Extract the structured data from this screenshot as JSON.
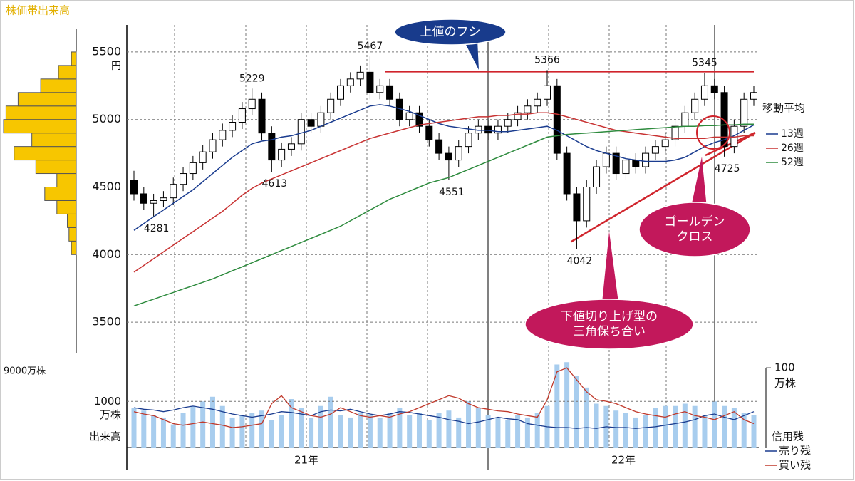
{
  "title": "株価帯出来高",
  "chart_data": [
    {
      "type": "candlestick",
      "open": [
        4550,
        4450,
        4380,
        4400,
        4420,
        4520,
        4600,
        4680,
        4760,
        4850,
        4920,
        4980,
        5080,
        5150,
        4900,
        4700,
        4780,
        4820,
        5000,
        4950,
        5050,
        5150,
        5250,
        5300,
        5350,
        5200,
        5250,
        5150,
        5000,
        5050,
        4950,
        4850,
        4750,
        4700,
        4800,
        4900,
        4950,
        4900,
        4950,
        5000,
        5050,
        5100,
        5150,
        5250,
        4750,
        4450,
        4250,
        4500,
        4650,
        4750,
        4600,
        4700,
        4650,
        4750,
        4800,
        4850,
        4950,
        5050,
        5150,
        5250,
        5200,
        4800,
        4950,
        5150
      ],
      "high": [
        4620,
        4500,
        4450,
        4470,
        4570,
        4650,
        4730,
        4810,
        4900,
        4970,
        5030,
        5130,
        5229,
        5200,
        4950,
        4830,
        4870,
        5050,
        5050,
        5100,
        5200,
        5300,
        5350,
        5400,
        5467,
        5300,
        5300,
        5200,
        5100,
        5100,
        5000,
        4900,
        4800,
        4850,
        4950,
        5000,
        5000,
        5000,
        5050,
        5100,
        5150,
        5200,
        5366,
        5300,
        4800,
        4500,
        4550,
        4700,
        4800,
        4800,
        4750,
        4750,
        4800,
        4850,
        4900,
        5000,
        5100,
        5200,
        5345,
        5300,
        5250,
        5000,
        5200,
        5250
      ],
      "low": [
        4400,
        4330,
        4281,
        4350,
        4370,
        4470,
        4550,
        4630,
        4710,
        4800,
        4870,
        4930,
        5030,
        4850,
        4613,
        4650,
        4730,
        4770,
        4900,
        4900,
        5000,
        5100,
        5200,
        5250,
        5150,
        5150,
        5100,
        4950,
        4950,
        4900,
        4800,
        4700,
        4551,
        4650,
        4750,
        4850,
        4850,
        4850,
        4900,
        4950,
        5000,
        5050,
        5100,
        4700,
        4400,
        4042,
        4200,
        4450,
        4600,
        4550,
        4550,
        4600,
        4600,
        4700,
        4750,
        4800,
        4900,
        5000,
        5100,
        5150,
        4725,
        4750,
        4900,
        5100
      ],
      "close": [
        4450,
        4380,
        4400,
        4420,
        4520,
        4600,
        4680,
        4760,
        4850,
        4920,
        4980,
        5080,
        5150,
        4900,
        4700,
        4780,
        4820,
        5000,
        4950,
        5050,
        5150,
        5250,
        5300,
        5350,
        5200,
        5250,
        5150,
        5000,
        5050,
        4950,
        4850,
        4750,
        4700,
        4800,
        4900,
        4950,
        4900,
        4950,
        5000,
        5050,
        5100,
        5150,
        5250,
        4750,
        4450,
        4250,
        4500,
        4650,
        4750,
        4600,
        4700,
        4650,
        4750,
        4800,
        4850,
        4950,
        5050,
        5150,
        5250,
        5200,
        4800,
        4950,
        5150,
        5200
      ],
      "up_color": "#ffffff",
      "down_color": "#000000",
      "ylim": [
        3300,
        5700
      ],
      "yticks": [
        3500,
        4000,
        4500,
        5000,
        5500
      ],
      "y_unit": "円",
      "grid": true,
      "x_period_labels": [
        "21年",
        "22年"
      ],
      "legend_title": "移動平均",
      "series": [
        {
          "name": "13週",
          "color": "#1a3c8f",
          "values": [
            4180,
            4230,
            4280,
            4330,
            4380,
            4430,
            4480,
            4540,
            4600,
            4660,
            4720,
            4770,
            4820,
            4840,
            4850,
            4870,
            4880,
            4900,
            4920,
            4950,
            4980,
            5010,
            5040,
            5070,
            5100,
            5110,
            5100,
            5080,
            5060,
            5030,
            5000,
            4970,
            4950,
            4940,
            4930,
            4920,
            4920,
            4910,
            4910,
            4920,
            4930,
            4940,
            4950,
            4920,
            4880,
            4840,
            4800,
            4770,
            4750,
            4730,
            4710,
            4700,
            4690,
            4690,
            4690,
            4700,
            4720,
            4760,
            4800,
            4830,
            4850,
            4880,
            4920,
            4960
          ]
        },
        {
          "name": "26週",
          "color": "#c83232",
          "values": [
            3870,
            3920,
            3970,
            4020,
            4070,
            4120,
            4170,
            4220,
            4270,
            4320,
            4380,
            4440,
            4490,
            4530,
            4560,
            4590,
            4620,
            4650,
            4680,
            4710,
            4740,
            4770,
            4800,
            4830,
            4860,
            4880,
            4900,
            4920,
            4940,
            4960,
            4970,
            4980,
            4990,
            5000,
            5010,
            5020,
            5020,
            5030,
            5030,
            5040,
            5040,
            5050,
            5050,
            5040,
            5020,
            5000,
            4980,
            4960,
            4940,
            4920,
            4910,
            4900,
            4890,
            4880,
            4870,
            4860,
            4860,
            4860,
            4860,
            4870,
            4870,
            4870,
            4880,
            4880
          ]
        },
        {
          "name": "52週",
          "color": "#2e8b3e",
          "values": [
            3620,
            3645,
            3670,
            3695,
            3720,
            3745,
            3770,
            3795,
            3820,
            3850,
            3880,
            3910,
            3940,
            3970,
            4000,
            4030,
            4060,
            4090,
            4120,
            4150,
            4180,
            4210,
            4250,
            4290,
            4330,
            4370,
            4410,
            4440,
            4470,
            4500,
            4530,
            4550,
            4570,
            4600,
            4630,
            4660,
            4690,
            4720,
            4750,
            4780,
            4810,
            4840,
            4870,
            4880,
            4890,
            4895,
            4900,
            4905,
            4910,
            4915,
            4920,
            4925,
            4930,
            4935,
            4940,
            4945,
            4950,
            4950,
            4955,
            4955,
            4960,
            4960,
            4965,
            4965
          ]
        }
      ],
      "annotations": [
        [
          "上値のフシ"
        ],
        [
          "ゴールデン",
          "クロス"
        ],
        [
          "下値切り上げ型の",
          "三角保ち合い"
        ]
      ]
    },
    {
      "type": "bar",
      "values": [
        850,
        800,
        700,
        650,
        500,
        750,
        900,
        1000,
        1100,
        900,
        650,
        700,
        750,
        800,
        600,
        700,
        1050,
        850,
        650,
        900,
        1100,
        700,
        650,
        750,
        700,
        650,
        750,
        850,
        700,
        750,
        600,
        750,
        800,
        650,
        1000,
        850,
        700,
        650,
        600,
        700,
        650,
        750,
        900,
        1800,
        1850,
        1550,
        1300,
        950,
        900,
        800,
        750,
        650,
        700,
        850,
        900,
        900,
        950,
        900,
        700,
        1000,
        900,
        850,
        750,
        700
      ],
      "color": "#a8cdee",
      "ylim": [
        0,
        1900
      ],
      "yticks": [
        1000
      ],
      "y_unit": "万株",
      "ylabel": "出来高",
      "y2lim": [
        0,
        110
      ],
      "y2ticks": [
        100
      ],
      "y2_unit": "万株",
      "y2label": "信用残",
      "series": [
        {
          "name": "売り残",
          "color": "#1a3c8f",
          "axis": "y2",
          "values": [
            50,
            48,
            47,
            45,
            47,
            50,
            52,
            50,
            48,
            45,
            42,
            40,
            38,
            40,
            42,
            45,
            44,
            42,
            40,
            45,
            47,
            46,
            48,
            45,
            42,
            40,
            42,
            45,
            44,
            42,
            40,
            38,
            35,
            33,
            30,
            32,
            35,
            38,
            36,
            35,
            30,
            28,
            26,
            25,
            25,
            24,
            25,
            24,
            26,
            25,
            25,
            24,
            25,
            26,
            28,
            30,
            32,
            35,
            40,
            42,
            38,
            35,
            40,
            45
          ]
        },
        {
          "name": "買い残",
          "color": "#c0392b",
          "axis": "y2",
          "values": [
            45,
            42,
            40,
            35,
            30,
            28,
            30,
            32,
            30,
            28,
            25,
            26,
            28,
            30,
            55,
            65,
            50,
            45,
            40,
            38,
            42,
            50,
            45,
            40,
            38,
            40,
            38,
            42,
            45,
            50,
            55,
            60,
            65,
            62,
            55,
            50,
            48,
            46,
            45,
            42,
            40,
            38,
            60,
            95,
            100,
            85,
            70,
            60,
            58,
            55,
            50,
            45,
            42,
            40,
            38,
            42,
            45,
            40,
            38,
            35,
            40,
            45,
            35,
            30
          ]
        }
      ]
    },
    {
      "type": "histogram",
      "orientation": "horizontal",
      "bins": [
        4000,
        4100,
        4200,
        4300,
        4400,
        4500,
        4600,
        4700,
        4800,
        4900,
        5000,
        5100,
        5200,
        5300,
        5400,
        5500
      ],
      "values": [
        600,
        900,
        1100,
        2400,
        3900,
        2400,
        5000,
        7700,
        5500,
        9000,
        8700,
        7200,
        4400,
        2200,
        600
      ],
      "color": "#f7c600",
      "xlim": [
        0,
        9000
      ],
      "xticks": [
        {
          "value": 9000,
          "label": "9000万株"
        }
      ]
    }
  ]
}
